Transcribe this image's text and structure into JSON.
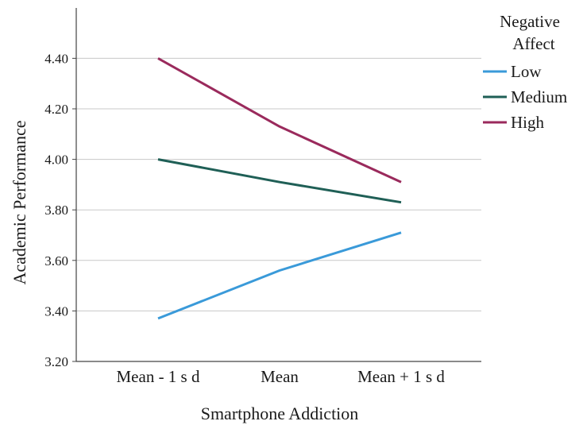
{
  "chart_data": {
    "type": "line",
    "title": "",
    "xlabel": "Smartphone Addiction",
    "ylabel": "Academic Performance",
    "categories": [
      "Mean - 1 s d",
      "Mean",
      "Mean + 1 s d"
    ],
    "ylim": [
      3.2,
      4.5
    ],
    "yticks": [
      "3.20",
      "3.40",
      "3.60",
      "3.80",
      "4.00",
      "4.20",
      "4.40"
    ],
    "grid": true,
    "legend": {
      "title_lines": [
        "Negative",
        "Affect"
      ],
      "placement": "right"
    },
    "series": [
      {
        "name": "Low",
        "color": "#3a9ad9",
        "values": [
          3.37,
          3.56,
          3.71
        ]
      },
      {
        "name": "Medium",
        "color": "#1f5f56",
        "values": [
          4.0,
          3.91,
          3.83
        ]
      },
      {
        "name": "High",
        "color": "#9a2a5c",
        "values": [
          4.4,
          4.13,
          3.91
        ]
      }
    ]
  }
}
